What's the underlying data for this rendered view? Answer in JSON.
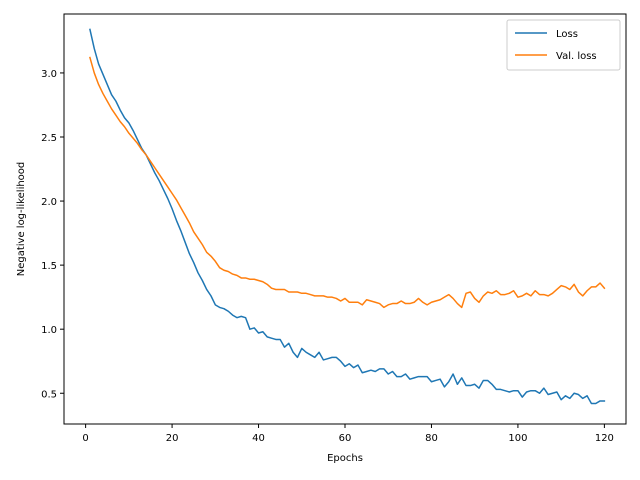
{
  "chart_data": {
    "type": "line",
    "title": "",
    "xlabel": "Epochs",
    "ylabel": "Negative log-likelihood",
    "xlim": [
      -5,
      125
    ],
    "ylim": [
      0.26,
      3.46
    ],
    "x_ticks": [
      0,
      20,
      40,
      60,
      80,
      100,
      120
    ],
    "y_ticks": [
      0.5,
      1.0,
      1.5,
      2.0,
      2.5,
      3.0
    ],
    "y_tick_format": 1,
    "grid": false,
    "legend_position": "top-right",
    "x": [
      1,
      2,
      3,
      4,
      5,
      6,
      7,
      8,
      9,
      10,
      11,
      12,
      13,
      14,
      15,
      16,
      17,
      18,
      19,
      20,
      21,
      22,
      23,
      24,
      25,
      26,
      27,
      28,
      29,
      30,
      31,
      32,
      33,
      34,
      35,
      36,
      37,
      38,
      39,
      40,
      41,
      42,
      43,
      44,
      45,
      46,
      47,
      48,
      49,
      50,
      51,
      52,
      53,
      54,
      55,
      56,
      57,
      58,
      59,
      60,
      61,
      62,
      63,
      64,
      65,
      66,
      67,
      68,
      69,
      70,
      71,
      72,
      73,
      74,
      75,
      76,
      77,
      78,
      79,
      80,
      81,
      82,
      83,
      84,
      85,
      86,
      87,
      88,
      89,
      90,
      91,
      92,
      93,
      94,
      95,
      96,
      97,
      98,
      99,
      100,
      101,
      102,
      103,
      104,
      105,
      106,
      107,
      108,
      109,
      110,
      111,
      112,
      113,
      114,
      115,
      116,
      117,
      118,
      119,
      120
    ],
    "series": [
      {
        "name": "Loss",
        "color": "#1f77b4",
        "values": [
          3.34,
          3.19,
          3.07,
          2.99,
          2.91,
          2.83,
          2.78,
          2.71,
          2.65,
          2.61,
          2.55,
          2.48,
          2.41,
          2.36,
          2.29,
          2.22,
          2.16,
          2.09,
          2.02,
          1.94,
          1.85,
          1.77,
          1.68,
          1.59,
          1.52,
          1.44,
          1.38,
          1.31,
          1.26,
          1.19,
          1.17,
          1.16,
          1.14,
          1.11,
          1.09,
          1.1,
          1.09,
          1.0,
          1.01,
          0.97,
          0.98,
          0.94,
          0.93,
          0.92,
          0.92,
          0.86,
          0.89,
          0.82,
          0.78,
          0.85,
          0.82,
          0.8,
          0.78,
          0.82,
          0.76,
          0.77,
          0.78,
          0.78,
          0.75,
          0.71,
          0.73,
          0.7,
          0.72,
          0.66,
          0.67,
          0.68,
          0.67,
          0.69,
          0.69,
          0.65,
          0.67,
          0.63,
          0.63,
          0.65,
          0.61,
          0.62,
          0.63,
          0.63,
          0.63,
          0.59,
          0.6,
          0.61,
          0.55,
          0.59,
          0.65,
          0.57,
          0.62,
          0.56,
          0.56,
          0.57,
          0.54,
          0.6,
          0.6,
          0.57,
          0.53,
          0.53,
          0.52,
          0.51,
          0.52,
          0.52,
          0.47,
          0.51,
          0.52,
          0.52,
          0.5,
          0.54,
          0.49,
          0.5,
          0.51,
          0.45,
          0.48,
          0.46,
          0.5,
          0.49,
          0.46,
          0.48,
          0.42,
          0.42,
          0.44,
          0.44
        ]
      },
      {
        "name": "Val. loss",
        "color": "#ff7f0e",
        "values": [
          3.12,
          3.0,
          2.91,
          2.84,
          2.78,
          2.72,
          2.67,
          2.62,
          2.58,
          2.53,
          2.49,
          2.45,
          2.4,
          2.36,
          2.31,
          2.26,
          2.21,
          2.16,
          2.11,
          2.06,
          2.01,
          1.95,
          1.89,
          1.83,
          1.76,
          1.71,
          1.66,
          1.6,
          1.57,
          1.53,
          1.48,
          1.46,
          1.45,
          1.43,
          1.42,
          1.4,
          1.4,
          1.39,
          1.39,
          1.38,
          1.37,
          1.35,
          1.32,
          1.31,
          1.31,
          1.31,
          1.29,
          1.29,
          1.29,
          1.28,
          1.28,
          1.27,
          1.26,
          1.26,
          1.26,
          1.25,
          1.25,
          1.24,
          1.22,
          1.24,
          1.21,
          1.21,
          1.21,
          1.19,
          1.23,
          1.22,
          1.21,
          1.2,
          1.17,
          1.19,
          1.2,
          1.2,
          1.22,
          1.2,
          1.2,
          1.21,
          1.24,
          1.21,
          1.19,
          1.21,
          1.22,
          1.23,
          1.25,
          1.27,
          1.24,
          1.2,
          1.17,
          1.28,
          1.29,
          1.24,
          1.21,
          1.26,
          1.29,
          1.28,
          1.3,
          1.27,
          1.27,
          1.28,
          1.3,
          1.25,
          1.26,
          1.28,
          1.26,
          1.3,
          1.27,
          1.27,
          1.26,
          1.28,
          1.31,
          1.34,
          1.33,
          1.31,
          1.35,
          1.29,
          1.26,
          1.3,
          1.33,
          1.33,
          1.36,
          1.32
        ]
      }
    ]
  }
}
